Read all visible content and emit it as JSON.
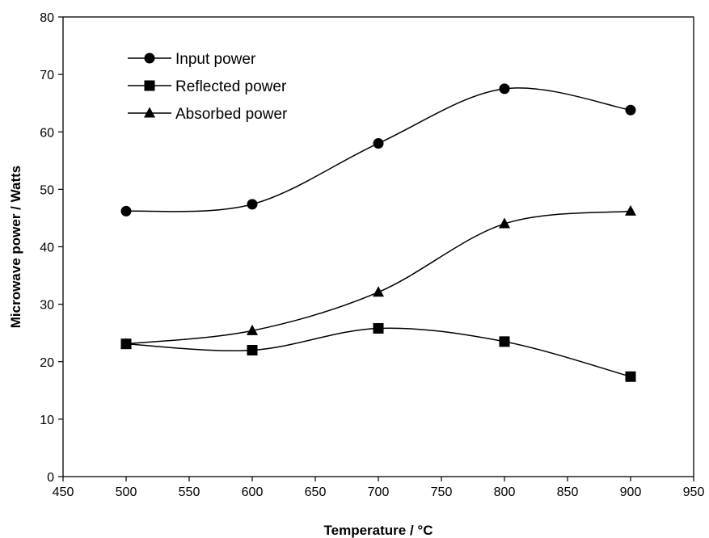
{
  "chart_data": {
    "type": "line",
    "title": "",
    "xlabel": "Temperature / °C",
    "ylabel": "Microwave power / Watts",
    "xlim": [
      450,
      950
    ],
    "ylim": [
      0,
      80
    ],
    "x_ticks": [
      "450",
      "500",
      "550",
      "600",
      "650",
      "700",
      "750",
      "800",
      "850",
      "900",
      "950"
    ],
    "y_ticks": [
      "0",
      "10",
      "20",
      "30",
      "40",
      "50",
      "60",
      "70",
      "80"
    ],
    "grid": false,
    "legend_position": "top-left",
    "smooth": true,
    "x": [
      500,
      600,
      700,
      800,
      900
    ],
    "series": [
      {
        "name": "Input power",
        "marker": "circle",
        "values": [
          46.2,
          47.4,
          58.0,
          67.5,
          63.8
        ]
      },
      {
        "name": "Reflected power",
        "marker": "square",
        "values": [
          23.1,
          22.0,
          25.8,
          23.5,
          17.4
        ]
      },
      {
        "name": "Absorbed power",
        "marker": "triangle",
        "values": [
          23.1,
          25.4,
          32.1,
          44.0,
          46.2
        ]
      }
    ],
    "colors": {
      "line": "#000000",
      "background": "#ffffff"
    }
  }
}
